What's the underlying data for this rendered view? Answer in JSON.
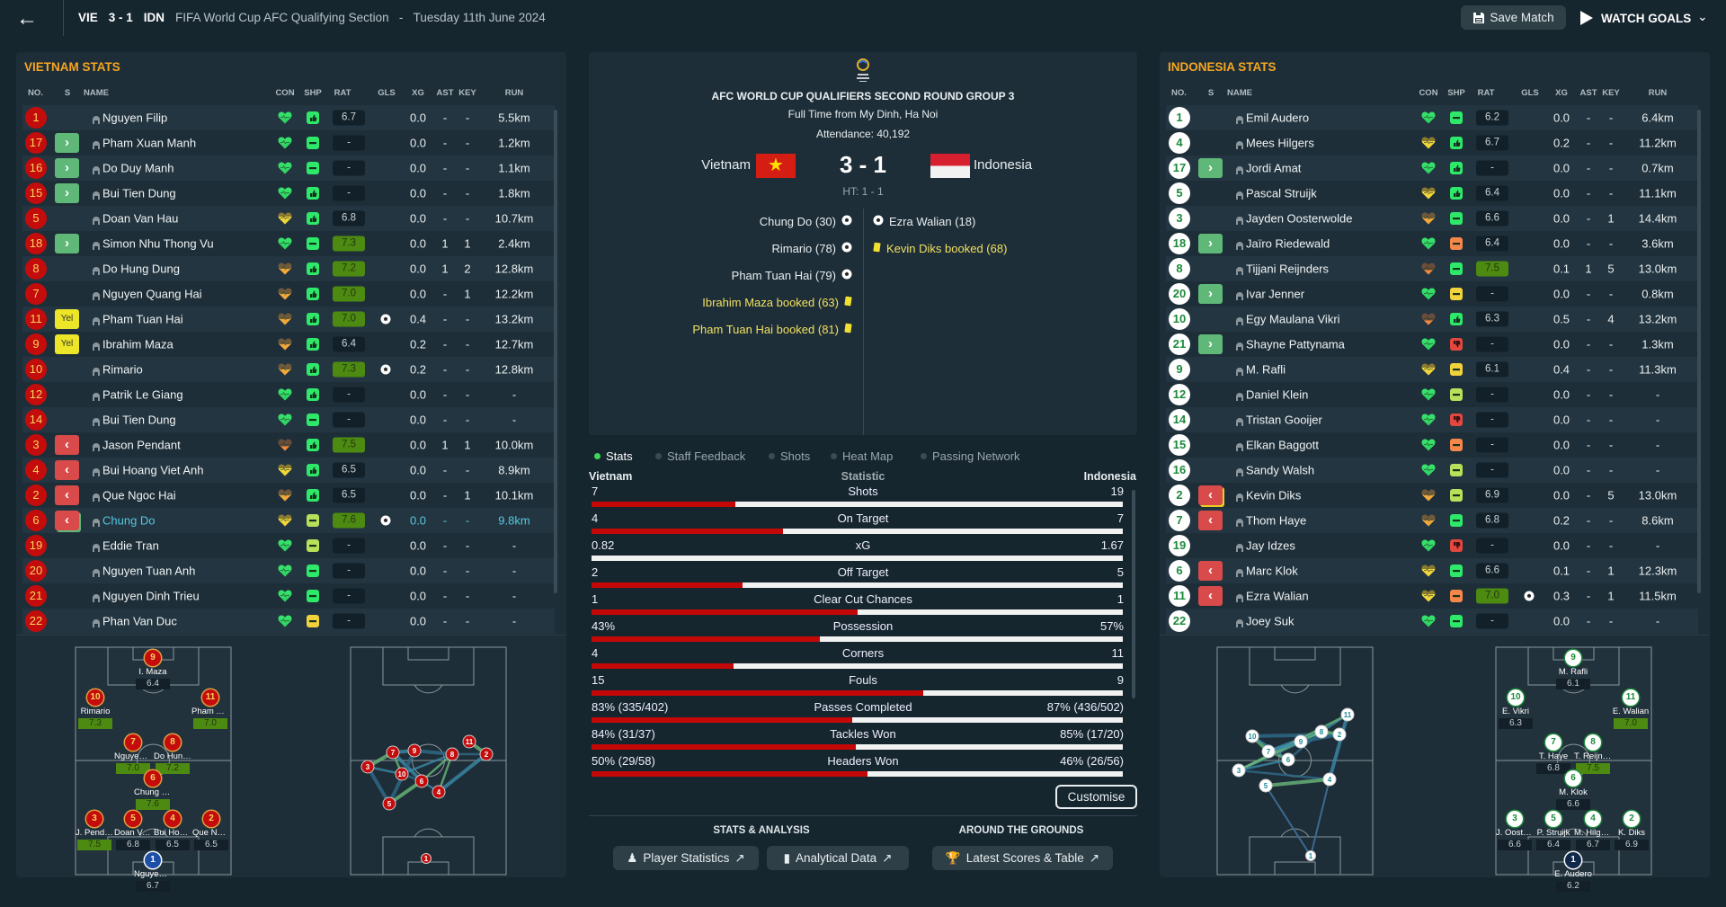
{
  "topbar": {
    "home": "VIE",
    "score": "3 - 1",
    "away": "IDN",
    "competition": "FIFA World Cup AFC Qualifying Section",
    "separator": "-",
    "date": "Tuesday 11th June 2024",
    "save_label": "Save Match",
    "watch_label": "WATCH GOALS"
  },
  "columns": [
    "NO.",
    "S",
    "NAME",
    "CON",
    "SHP",
    "RAT",
    "GLS",
    "XG",
    "AST",
    "KEY",
    "RUN"
  ],
  "vietnam": {
    "title": "VIETNAM STATS",
    "players": [
      {
        "no": "1",
        "sub": "",
        "name": "Nguyen Filip",
        "con": "green",
        "shp": "green-up",
        "rat": "6.7",
        "hl": false,
        "goal": false,
        "xg": "0.0",
        "ast": "-",
        "key": "-",
        "run": "5.5km"
      },
      {
        "no": "17",
        "sub": "in",
        "name": "Pham Xuan Manh",
        "con": "green",
        "shp": "green-minus",
        "rat": "-",
        "hl": false,
        "goal": false,
        "xg": "0.0",
        "ast": "-",
        "key": "-",
        "run": "1.2km"
      },
      {
        "no": "16",
        "sub": "in",
        "name": "Do Duy Manh",
        "con": "green",
        "shp": "green-minus",
        "rat": "-",
        "hl": false,
        "goal": false,
        "xg": "0.0",
        "ast": "-",
        "key": "-",
        "run": "1.1km"
      },
      {
        "no": "15",
        "sub": "in",
        "name": "Bui Tien Dung",
        "con": "green",
        "shp": "green-up",
        "rat": "-",
        "hl": false,
        "goal": false,
        "xg": "0.0",
        "ast": "-",
        "key": "-",
        "run": "1.8km"
      },
      {
        "no": "5",
        "sub": "",
        "name": "Doan Van Hau",
        "con": "yellow",
        "shp": "green-up",
        "rat": "6.8",
        "hl": false,
        "goal": false,
        "xg": "0.0",
        "ast": "-",
        "key": "-",
        "run": "10.7km"
      },
      {
        "no": "18",
        "sub": "in",
        "name": "Simon Nhu Thong Vu",
        "con": "green",
        "shp": "green-minus",
        "rat": "7.3",
        "hl": true,
        "goal": false,
        "xg": "0.0",
        "ast": "1",
        "key": "1",
        "run": "2.4km"
      },
      {
        "no": "8",
        "sub": "",
        "name": "Do Hung Dung",
        "con": "orange",
        "shp": "green-up",
        "rat": "7.2",
        "hl": true,
        "goal": false,
        "xg": "0.0",
        "ast": "1",
        "key": "2",
        "run": "12.8km"
      },
      {
        "no": "7",
        "sub": "",
        "name": "Nguyen Quang Hai",
        "con": "orange",
        "shp": "green-up",
        "rat": "7.0",
        "hl": true,
        "goal": false,
        "xg": "0.0",
        "ast": "-",
        "key": "1",
        "run": "12.2km"
      },
      {
        "no": "11",
        "sub": "yel",
        "sub_label": "Yel",
        "name": "Pham Tuan Hai",
        "con": "orange",
        "shp": "green-up",
        "rat": "7.0",
        "hl": true,
        "goal": true,
        "xg": "0.4",
        "ast": "-",
        "key": "-",
        "run": "13.2km"
      },
      {
        "no": "9",
        "sub": "yel",
        "sub_label": "Yel",
        "name": "Ibrahim Maza",
        "con": "orange",
        "shp": "green-up",
        "rat": "6.4",
        "hl": false,
        "goal": false,
        "xg": "0.2",
        "ast": "-",
        "key": "-",
        "run": "12.7km"
      },
      {
        "no": "10",
        "sub": "",
        "name": "Rimario",
        "con": "orange",
        "shp": "green-up",
        "rat": "7.3",
        "hl": true,
        "goal": true,
        "xg": "0.2",
        "ast": "-",
        "key": "-",
        "run": "12.8km"
      },
      {
        "no": "12",
        "sub": "",
        "name": "Patrik Le Giang",
        "con": "green",
        "shp": "green-up",
        "rat": "-",
        "hl": false,
        "goal": false,
        "xg": "0.0",
        "ast": "-",
        "key": "-",
        "run": "-"
      },
      {
        "no": "14",
        "sub": "",
        "name": "Bui Tien Dung",
        "con": "green",
        "shp": "green-minus",
        "rat": "-",
        "hl": false,
        "goal": false,
        "xg": "0.0",
        "ast": "-",
        "key": "-",
        "run": "-"
      },
      {
        "no": "3",
        "sub": "out",
        "name": "Jason Pendant",
        "con": "brown",
        "shp": "green-up",
        "rat": "7.5",
        "hl": true,
        "goal": false,
        "xg": "0.0",
        "ast": "1",
        "key": "1",
        "run": "10.0km"
      },
      {
        "no": "4",
        "sub": "out",
        "name": "Bui Hoang Viet Anh",
        "con": "yellow",
        "shp": "green-up",
        "rat": "6.5",
        "hl": false,
        "goal": false,
        "xg": "0.0",
        "ast": "-",
        "key": "-",
        "run": "8.9km"
      },
      {
        "no": "2",
        "sub": "out",
        "name": "Que Ngoc Hai",
        "con": "orange",
        "shp": "green-up",
        "rat": "6.5",
        "hl": false,
        "goal": false,
        "xg": "0.0",
        "ast": "-",
        "key": "1",
        "run": "10.1km"
      },
      {
        "no": "6",
        "sub": "out",
        "name": "Chung Do",
        "con": "yellow",
        "shp": "lime-minus",
        "rat": "7.6",
        "hl": true,
        "goal": true,
        "xg": "0.0",
        "ast": "-",
        "key": "-",
        "run": "9.8km",
        "selected": true
      },
      {
        "no": "19",
        "sub": "",
        "name": "Eddie Tran",
        "con": "green",
        "shp": "lime-minus",
        "rat": "-",
        "hl": false,
        "goal": false,
        "xg": "0.0",
        "ast": "-",
        "key": "-",
        "run": "-"
      },
      {
        "no": "20",
        "sub": "",
        "name": "Nguyen Tuan Anh",
        "con": "green",
        "shp": "green-minus",
        "rat": "-",
        "hl": false,
        "goal": false,
        "xg": "0.0",
        "ast": "-",
        "key": "-",
        "run": "-"
      },
      {
        "no": "21",
        "sub": "",
        "name": "Nguyen Dinh Trieu",
        "con": "green",
        "shp": "green-minus",
        "rat": "-",
        "hl": false,
        "goal": false,
        "xg": "0.0",
        "ast": "-",
        "key": "-",
        "run": "-"
      },
      {
        "no": "22",
        "sub": "",
        "name": "Phan Van Duc",
        "con": "green",
        "shp": "yellow-minus",
        "rat": "-",
        "hl": false,
        "goal": false,
        "xg": "0.0",
        "ast": "-",
        "key": "-",
        "run": "-"
      }
    ],
    "formation": [
      {
        "no": "9",
        "name": "I. Maza",
        "rat": "6.4",
        "hl": false
      },
      {
        "no": "10",
        "name": "Rimario",
        "rat": "7.3",
        "hl": true
      },
      {
        "no": "11",
        "name": "Pham Tuan...",
        "rat": "7.0",
        "hl": true
      },
      {
        "no": "7",
        "name": "Nguyen Qua...",
        "rat": "7.0",
        "hl": true
      },
      {
        "no": "8",
        "name": "Do Hung Dung",
        "rat": "7.2",
        "hl": true
      },
      {
        "no": "6",
        "name": "Chung Do",
        "rat": "7.6",
        "hl": true
      },
      {
        "no": "3",
        "name": "J. Pendant",
        "rat": "7.5",
        "hl": true
      },
      {
        "no": "5",
        "name": "Doan Van Hau",
        "rat": "6.8",
        "hl": false
      },
      {
        "no": "4",
        "name": "Bui Hoang Vi...",
        "rat": "6.5",
        "hl": false
      },
      {
        "no": "2",
        "name": "Que Ngoc Hai",
        "rat": "6.5",
        "hl": false
      },
      {
        "no": "1",
        "name": "Nguyen Filip",
        "rat": "6.7",
        "hl": false
      }
    ],
    "network_nodes": [
      "3",
      "7",
      "10",
      "9",
      "6",
      "5",
      "4",
      "8",
      "11",
      "2",
      "1"
    ]
  },
  "indonesia": {
    "title": "INDONESIA STATS",
    "players": [
      {
        "no": "1",
        "sub": "",
        "name": "Emil Audero",
        "con": "green",
        "shp": "green-minus",
        "rat": "6.2",
        "hl": false,
        "goal": false,
        "xg": "0.0",
        "ast": "-",
        "key": "-",
        "run": "6.4km"
      },
      {
        "no": "4",
        "sub": "",
        "name": "Mees Hilgers",
        "con": "yellow",
        "shp": "green-up",
        "rat": "6.7",
        "hl": false,
        "goal": false,
        "xg": "0.2",
        "ast": "-",
        "key": "-",
        "run": "11.2km"
      },
      {
        "no": "17",
        "sub": "in",
        "name": "Jordi Amat",
        "con": "green",
        "shp": "green-up",
        "rat": "-",
        "hl": false,
        "goal": false,
        "xg": "0.0",
        "ast": "-",
        "key": "-",
        "run": "0.7km"
      },
      {
        "no": "5",
        "sub": "",
        "name": "Pascal Struijk",
        "con": "yellow",
        "shp": "green-up",
        "rat": "6.4",
        "hl": false,
        "goal": false,
        "xg": "0.0",
        "ast": "-",
        "key": "-",
        "run": "11.1km"
      },
      {
        "no": "3",
        "sub": "",
        "name": "Jayden Oosterwolde",
        "con": "orange",
        "shp": "green-minus",
        "rat": "6.6",
        "hl": false,
        "goal": false,
        "xg": "0.0",
        "ast": "-",
        "key": "1",
        "run": "14.4km"
      },
      {
        "no": "18",
        "sub": "in",
        "name": "Jaïro Riedewald",
        "con": "green",
        "shp": "orange-minus",
        "rat": "6.4",
        "hl": false,
        "goal": false,
        "xg": "0.0",
        "ast": "-",
        "key": "-",
        "run": "3.6km"
      },
      {
        "no": "8",
        "sub": "",
        "name": "Tijjani Reijnders",
        "con": "brown",
        "shp": "green-minus",
        "rat": "7.5",
        "hl": true,
        "goal": false,
        "xg": "0.1",
        "ast": "1",
        "key": "5",
        "run": "13.0km"
      },
      {
        "no": "20",
        "sub": "in",
        "name": "Ivar Jenner",
        "con": "green",
        "shp": "yellow-minus",
        "rat": "-",
        "hl": false,
        "goal": false,
        "xg": "0.0",
        "ast": "-",
        "key": "-",
        "run": "0.8km"
      },
      {
        "no": "10",
        "sub": "",
        "name": "Egy Maulana Vikri",
        "con": "brown",
        "shp": "green-up",
        "rat": "6.3",
        "hl": false,
        "goal": false,
        "xg": "0.5",
        "ast": "-",
        "key": "4",
        "run": "13.2km"
      },
      {
        "no": "21",
        "sub": "in",
        "name": "Shayne Pattynama",
        "con": "green",
        "shp": "red-down",
        "rat": "-",
        "hl": false,
        "goal": false,
        "xg": "0.0",
        "ast": "-",
        "key": "-",
        "run": "1.3km"
      },
      {
        "no": "9",
        "sub": "",
        "name": "M. Rafli",
        "con": "yellow",
        "shp": "yellow-minus",
        "rat": "6.1",
        "hl": false,
        "goal": false,
        "xg": "0.4",
        "ast": "-",
        "key": "-",
        "run": "11.3km"
      },
      {
        "no": "12",
        "sub": "",
        "name": "Daniel Klein",
        "con": "green",
        "shp": "lime-minus",
        "rat": "-",
        "hl": false,
        "goal": false,
        "xg": "0.0",
        "ast": "-",
        "key": "-",
        "run": "-"
      },
      {
        "no": "14",
        "sub": "",
        "name": "Tristan Gooijer",
        "con": "green",
        "shp": "red-down",
        "rat": "-",
        "hl": false,
        "goal": false,
        "xg": "0.0",
        "ast": "-",
        "key": "-",
        "run": "-"
      },
      {
        "no": "15",
        "sub": "",
        "name": "Elkan Baggott",
        "con": "green",
        "shp": "orange-minus",
        "rat": "-",
        "hl": false,
        "goal": false,
        "xg": "0.0",
        "ast": "-",
        "key": "-",
        "run": "-"
      },
      {
        "no": "16",
        "sub": "",
        "name": "Sandy Walsh",
        "con": "green",
        "shp": "lime-minus",
        "rat": "-",
        "hl": false,
        "goal": false,
        "xg": "0.0",
        "ast": "-",
        "key": "-",
        "run": "-"
      },
      {
        "no": "2",
        "sub": "out",
        "name": "Kevin Diks",
        "con": "orange",
        "shp": "lime-minus",
        "rat": "6.9",
        "hl": false,
        "goal": false,
        "xg": "0.0",
        "ast": "-",
        "key": "5",
        "run": "13.0km"
      },
      {
        "no": "7",
        "sub": "out",
        "name": "Thom Haye",
        "con": "orange",
        "shp": "green-minus",
        "rat": "6.8",
        "hl": false,
        "goal": false,
        "xg": "0.2",
        "ast": "-",
        "key": "-",
        "run": "8.6km"
      },
      {
        "no": "19",
        "sub": "",
        "name": "Jay Idzes",
        "con": "green",
        "shp": "red-down",
        "rat": "-",
        "hl": false,
        "goal": false,
        "xg": "0.0",
        "ast": "-",
        "key": "-",
        "run": "-"
      },
      {
        "no": "6",
        "sub": "out",
        "name": "Marc Klok",
        "con": "yellow",
        "shp": "green-minus",
        "rat": "6.6",
        "hl": false,
        "goal": false,
        "xg": "0.1",
        "ast": "-",
        "key": "1",
        "run": "12.3km"
      },
      {
        "no": "11",
        "sub": "out",
        "name": "Ezra Walian",
        "con": "yellow",
        "shp": "orange-minus",
        "rat": "7.0",
        "hl": true,
        "goal": true,
        "xg": "0.3",
        "ast": "-",
        "key": "1",
        "run": "11.5km"
      },
      {
        "no": "22",
        "sub": "",
        "name": "Joey Suk",
        "con": "green",
        "shp": "green-minus",
        "rat": "-",
        "hl": false,
        "goal": false,
        "xg": "0.0",
        "ast": "-",
        "key": "-",
        "run": "-"
      }
    ],
    "formation": [
      {
        "no": "9",
        "name": "M. Rafli",
        "rat": "6.1",
        "hl": false
      },
      {
        "no": "10",
        "name": "E. Vikri",
        "rat": "6.3",
        "hl": false
      },
      {
        "no": "11",
        "name": "E. Walian",
        "rat": "7.0",
        "hl": true
      },
      {
        "no": "7",
        "name": "T. Haye",
        "rat": "6.8",
        "hl": false
      },
      {
        "no": "8",
        "name": "T. Reijnders",
        "rat": "7.5",
        "hl": true
      },
      {
        "no": "6",
        "name": "M. Klok",
        "rat": "6.6",
        "hl": false
      },
      {
        "no": "3",
        "name": "J. Oosterwol...",
        "rat": "6.6",
        "hl": false
      },
      {
        "no": "5",
        "name": "P. Struijk",
        "rat": "6.4",
        "hl": false
      },
      {
        "no": "4",
        "name": "M. Hilgers",
        "rat": "6.7",
        "hl": false
      },
      {
        "no": "2",
        "name": "K. Diks",
        "rat": "6.9",
        "hl": false
      },
      {
        "no": "1",
        "name": "E. Audero",
        "rat": "6.2",
        "hl": false
      }
    ],
    "network_nodes": [
      "10",
      "7",
      "6",
      "9",
      "8",
      "2",
      "11",
      "3",
      "5",
      "4",
      "1"
    ]
  },
  "match": {
    "competition_title": "AFC WORLD CUP QUALIFIERS SECOND ROUND GROUP 3",
    "venue": "Full Time from My Dinh, Ha Noi",
    "attendance": "Attendance: 40,192",
    "home_team": "Vietnam",
    "away_team": "Indonesia",
    "score": "3 - 1",
    "halftime": "HT: 1 - 1",
    "home_events": [
      {
        "type": "goal",
        "text": "Chung Do (30)"
      },
      {
        "type": "goal",
        "text": "Rimario (78)"
      },
      {
        "type": "goal",
        "text": "Pham Tuan Hai (79)"
      },
      {
        "type": "yellow",
        "text": "Ibrahim Maza booked (63)"
      },
      {
        "type": "yellow",
        "text": "Pham Tuan Hai booked (81)"
      }
    ],
    "away_events": [
      {
        "type": "goal",
        "text": "Ezra Walian (18)"
      },
      {
        "type": "yellow",
        "text": "Kevin Diks booked (68)"
      }
    ]
  },
  "tabs": [
    {
      "label": "Stats",
      "active": true
    },
    {
      "label": "Staff Feedback",
      "active": false
    },
    {
      "label": "Shots",
      "active": false
    },
    {
      "label": "Heat Map",
      "active": false
    },
    {
      "label": "Passing Network",
      "active": false
    }
  ],
  "stats": {
    "home_header": "Vietnam",
    "stat_header": "Statistic",
    "away_header": "Indonesia",
    "rows": [
      {
        "label": "Shots",
        "home": "7",
        "away": "19",
        "home_share": 0.27
      },
      {
        "label": "On Target",
        "home": "4",
        "away": "7",
        "home_share": 0.36
      },
      {
        "label": "xG",
        "home": "0.82",
        "away": "1.67",
        "home_share": 0
      },
      {
        "label": "Off Target",
        "home": "2",
        "away": "5",
        "home_share": 0.285
      },
      {
        "label": "Clear Cut Chances",
        "home": "1",
        "away": "1",
        "home_share": 0.5
      },
      {
        "label": "Possession",
        "home": "43%",
        "away": "57%",
        "home_share": 0.43
      },
      {
        "label": "Corners",
        "home": "4",
        "away": "11",
        "home_share": 0.267
      },
      {
        "label": "Fouls",
        "home": "15",
        "away": "9",
        "home_share": 0.625
      },
      {
        "label": "Passes Completed",
        "home": "83% (335/402)",
        "away": "87% (436/502)",
        "home_share": 0.49
      },
      {
        "label": "Tackles Won",
        "home": "84% (31/37)",
        "away": "85% (17/20)",
        "home_share": 0.497
      },
      {
        "label": "Headers Won",
        "home": "50% (29/58)",
        "away": "46% (26/56)",
        "home_share": 0.52
      }
    ],
    "customise_label": "Customise"
  },
  "bottom": {
    "stats_analysis": "STATS & ANALYSIS",
    "around_grounds": "AROUND THE GROUNDS",
    "player_statistics": "Player Statistics",
    "analytical_data": "Analytical Data",
    "latest_scores": "Latest Scores & Table"
  },
  "colors": {
    "accent": "#f5a623",
    "vietnam": "#c40c0c",
    "indonesia": "#1c8a3a",
    "highlight_rating": "#4c8a12"
  }
}
